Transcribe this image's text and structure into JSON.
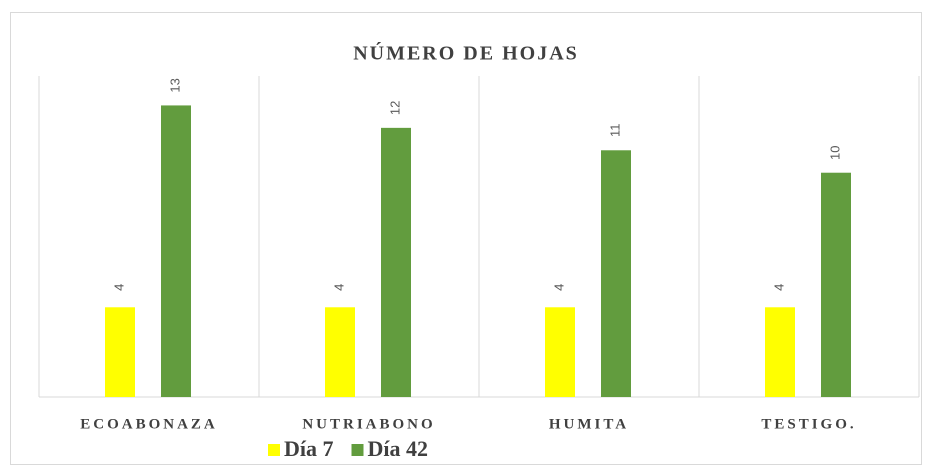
{
  "chart_data": {
    "type": "bar",
    "title": "NÚMERO DE HOJAS",
    "categories": [
      "ECOABONAZA",
      "NUTRIABONO",
      "HUMITA",
      "TESTIGO."
    ],
    "series": [
      {
        "name": "Día 7",
        "color": "#ffff00",
        "values": [
          4,
          4,
          4,
          4
        ]
      },
      {
        "name": "Día 42",
        "color": "#629c3e",
        "values": [
          13,
          12,
          11,
          10
        ]
      }
    ],
    "ylim": [
      0,
      14
    ],
    "legend": "bottom"
  }
}
